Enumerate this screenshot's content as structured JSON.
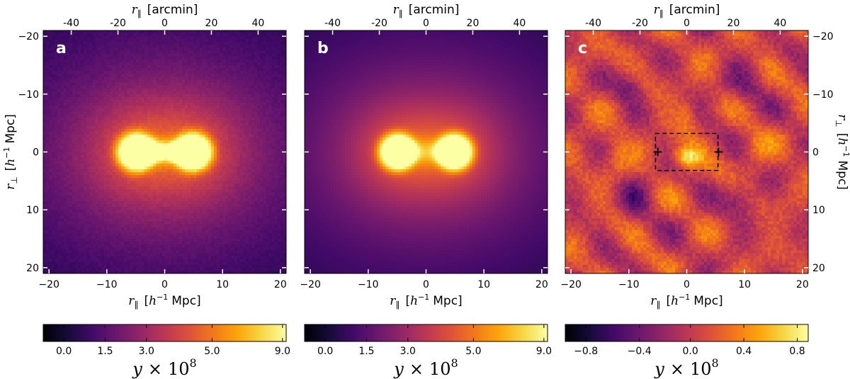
{
  "chart_data": {
    "type": "heatmap",
    "description_labels": {
      "top_axis_label": "r∥ [arcmin]",
      "bottom_axis_label": "r∥ [h⁻¹ Mpc]",
      "left_axis_label": "r⊥ [h⁻¹ Mpc]",
      "right_axis_label": "r⊥ [h⁻¹ Mpc]",
      "colorbar_label": "y × 10⁸"
    },
    "axis_text": {
      "r_par": "r",
      "r_par_sub": "∥",
      "r_perp": "r",
      "r_perp_sub": "⊥",
      "arcmin_unit": "[arcmin]",
      "mpc_open": "[",
      "h": "h",
      "minus_one": "−1",
      "mpc_close": "Mpc]",
      "cb_y": "y",
      "cb_times": "×",
      "cb_ten": "10",
      "cb_exp": "8"
    },
    "xlim": [
      -21,
      21
    ],
    "ylim": [
      -21,
      21
    ],
    "arcmin_lim": [
      -52,
      52
    ],
    "mpc_ticks": [
      -20,
      -10,
      0,
      10,
      20
    ],
    "mpc_tick_labels": [
      "−20",
      "−10",
      "0",
      "10",
      "20"
    ],
    "arcmin_ticks": [
      -40,
      -20,
      0,
      20,
      40
    ],
    "arcmin_tick_labels": [
      "-40",
      "-20",
      "0",
      "20",
      "40"
    ],
    "panels": [
      {
        "name": "a",
        "label": "a",
        "show_left_axis": true,
        "show_right_axis": false,
        "model": "data",
        "halos": [
          [
            -5,
            0
          ],
          [
            5,
            0
          ]
        ],
        "colorbar": {
          "ticks": [
            0.0,
            1.5,
            3.0,
            5.0,
            9.0
          ],
          "tick_labels": [
            "0.0",
            "1.5",
            "3.0",
            "5.0",
            "9.0"
          ],
          "tick_positions_fraction": [
            0.085,
            0.255,
            0.425,
            0.695,
            0.985
          ]
        }
      },
      {
        "name": "b",
        "label": "b",
        "show_left_axis": false,
        "show_right_axis": false,
        "model": "model",
        "halos": [
          [
            -5,
            0
          ],
          [
            5,
            0
          ]
        ],
        "colorbar": {
          "ticks": [
            0.0,
            1.5,
            3.0,
            5.0,
            9.0
          ],
          "tick_labels": [
            "0.0",
            "1.5",
            "3.0",
            "5.0",
            "9.0"
          ],
          "tick_positions_fraction": [
            0.085,
            0.255,
            0.425,
            0.695,
            0.985
          ]
        }
      },
      {
        "name": "c",
        "label": "c",
        "show_left_axis": false,
        "show_right_axis": true,
        "model": "residual",
        "halos": [
          [
            -5,
            0
          ],
          [
            5,
            0
          ]
        ],
        "colorbar": {
          "ticks": [
            -0.8,
            -0.4,
            0.0,
            0.4,
            0.8
          ],
          "tick_labels": [
            "−0.8",
            "−0.4",
            "0.0",
            "0.4",
            "0.8"
          ],
          "tick_positions_fraction": [
            0.085,
            0.305,
            0.515,
            0.735,
            0.955
          ]
        },
        "annotation": {
          "box_x": [
            -5.4,
            5.4
          ],
          "box_y": [
            -3.2,
            3.2
          ],
          "crosses": [
            [
              -5,
              0
            ],
            [
              5.5,
              0
            ]
          ]
        }
      }
    ],
    "colormap": "inferno"
  }
}
